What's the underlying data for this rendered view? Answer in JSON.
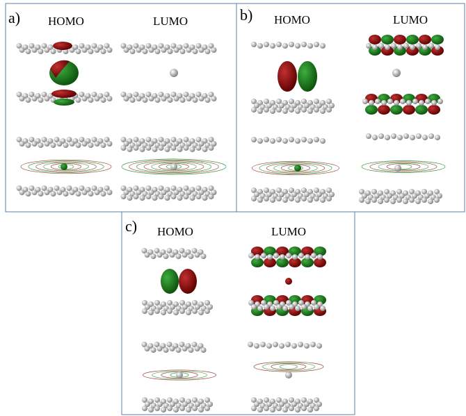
{
  "panels": [
    {
      "label": "a)",
      "columns": [
        "HOMO",
        "LUMO"
      ]
    },
    {
      "label": "b)",
      "columns": [
        "HOMO",
        "LUMO"
      ]
    },
    {
      "label": "c)",
      "columns": [
        "HOMO",
        "LUMO"
      ]
    }
  ]
}
